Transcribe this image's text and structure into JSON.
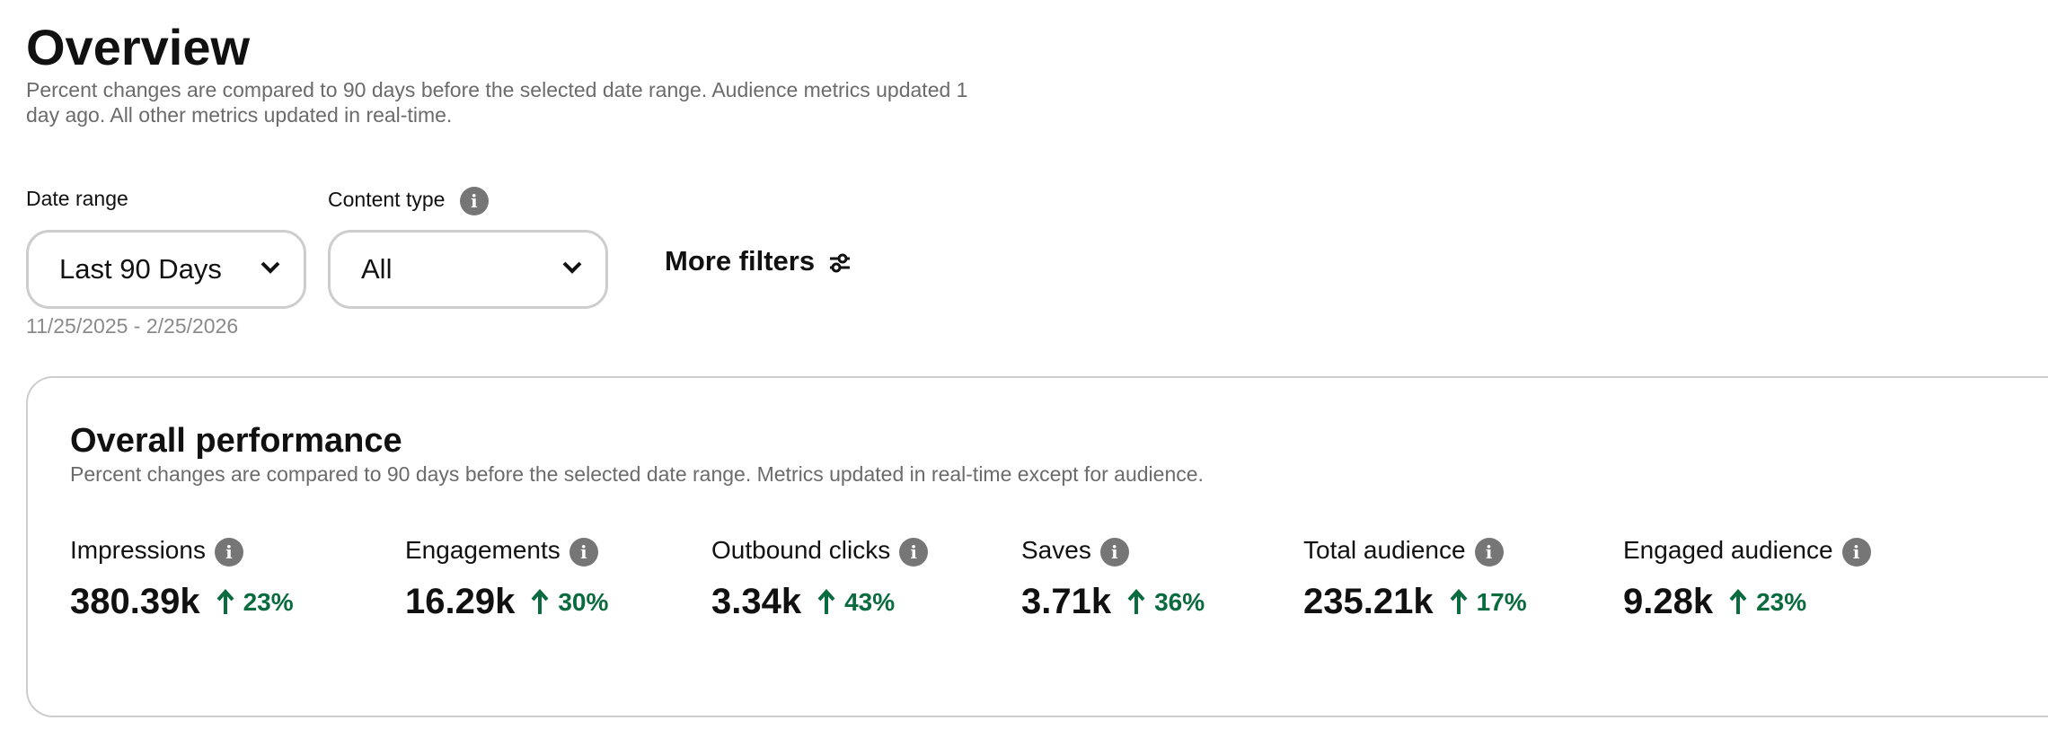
{
  "header": {
    "title": "Overview",
    "subtitle": "Percent changes are compared to 90 days before the selected date range. Audience metrics updated 1 day ago. All other metrics updated in real-time."
  },
  "filters": {
    "date_range": {
      "label": "Date range",
      "value": "Last 90 Days",
      "dates": "11/25/2025 - 2/25/2026"
    },
    "content_type": {
      "label": "Content type",
      "value": "All"
    },
    "more": "More filters"
  },
  "card": {
    "title": "Overall performance",
    "subtitle": "Percent changes are compared to 90 days before the selected date range. Metrics updated in real-time except for audience.",
    "metrics": [
      {
        "label": "Impressions",
        "value": "380.39k",
        "change": "23%"
      },
      {
        "label": "Engagements",
        "value": "16.29k",
        "change": "30%"
      },
      {
        "label": "Outbound clicks",
        "value": "3.34k",
        "change": "43%"
      },
      {
        "label": "Saves",
        "value": "3.71k",
        "change": "36%"
      },
      {
        "label": "Total audience",
        "value": "235.21k",
        "change": "17%"
      },
      {
        "label": "Engaged audience",
        "value": "9.28k",
        "change": "23%"
      }
    ]
  }
}
